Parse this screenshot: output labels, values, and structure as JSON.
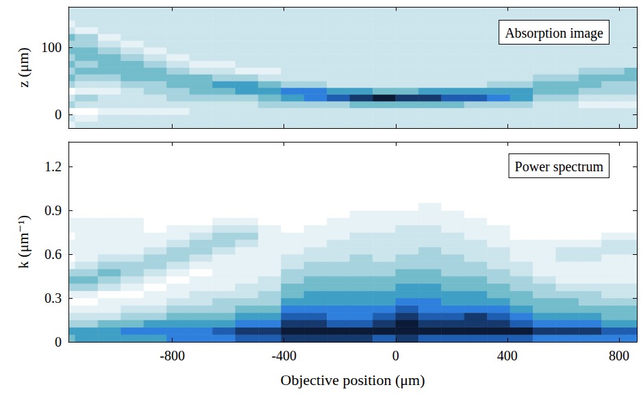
{
  "chart_data": [
    {
      "type": "heatmap",
      "annotation": "Absorption image",
      "ylabel": "z (μm)",
      "x": [
        -1189,
        -1107,
        -1025,
        -943,
        -861,
        -779,
        -697,
        -615,
        -533,
        -451,
        -369,
        -287,
        -205,
        -123,
        -41,
        41,
        123,
        205,
        287,
        369,
        451,
        533,
        615,
        697,
        779,
        861
      ],
      "y": [
        -15,
        -5,
        5,
        15,
        25,
        35,
        45,
        55,
        65,
        75,
        85,
        95,
        105,
        115,
        125,
        135,
        145,
        155
      ],
      "cell_width": 82,
      "cell_height": 10,
      "values": [
        [
          1,
          2,
          0,
          3,
          2,
          0,
          3,
          4,
          3,
          4,
          3,
          4,
          3,
          4,
          2,
          1,
          2,
          2
        ],
        [
          2,
          1,
          0,
          2,
          3,
          1,
          2,
          3,
          4,
          3,
          4,
          4,
          3,
          3,
          1,
          2,
          2,
          2
        ],
        [
          2,
          2,
          1,
          2,
          2,
          1,
          2,
          3,
          4,
          4,
          4,
          3,
          2,
          1,
          2,
          2,
          2,
          2
        ],
        [
          2,
          2,
          1,
          2,
          2,
          2,
          3,
          4,
          4,
          4,
          3,
          2,
          1,
          2,
          2,
          2,
          2,
          2
        ],
        [
          2,
          2,
          1,
          2,
          2,
          3,
          3,
          4,
          4,
          3,
          2,
          1,
          2,
          2,
          2,
          2,
          2,
          2
        ],
        [
          2,
          2,
          1,
          2,
          3,
          3,
          4,
          4,
          3,
          2,
          1,
          2,
          2,
          2,
          2,
          2,
          2,
          2
        ],
        [
          2,
          2,
          2,
          2,
          3,
          4,
          4,
          4,
          2,
          1,
          2,
          2,
          2,
          2,
          2,
          2,
          2,
          2
        ],
        [
          2,
          2,
          2,
          2,
          3,
          4,
          5,
          3,
          2,
          1,
          2,
          2,
          2,
          2,
          2,
          2,
          2,
          2
        ],
        [
          2,
          2,
          2,
          2,
          3,
          5,
          5,
          3,
          1,
          2,
          2,
          2,
          2,
          2,
          2,
          2,
          2,
          2
        ],
        [
          2,
          2,
          2,
          3,
          4,
          5,
          4,
          2,
          1,
          2,
          2,
          2,
          2,
          2,
          2,
          2,
          2,
          2
        ],
        [
          2,
          2,
          2,
          3,
          5,
          6,
          3,
          2,
          2,
          2,
          2,
          2,
          2,
          2,
          2,
          2,
          2,
          2
        ],
        [
          2,
          2,
          2,
          3,
          6,
          6,
          3,
          2,
          2,
          2,
          2,
          2,
          2,
          2,
          2,
          2,
          2,
          2
        ],
        [
          2,
          2,
          2,
          3,
          7,
          5,
          2,
          2,
          2,
          2,
          2,
          2,
          2,
          2,
          2,
          2,
          2,
          2
        ],
        [
          2,
          2,
          2,
          4,
          8,
          5,
          2,
          2,
          2,
          2,
          2,
          2,
          2,
          2,
          2,
          2,
          2,
          2
        ],
        [
          2,
          2,
          2,
          4,
          9,
          4,
          2,
          2,
          2,
          2,
          2,
          2,
          2,
          2,
          2,
          2,
          2,
          2
        ],
        [
          2,
          2,
          2,
          4,
          8,
          4,
          2,
          2,
          2,
          2,
          2,
          2,
          2,
          2,
          2,
          2,
          2,
          2
        ],
        [
          2,
          2,
          2,
          4,
          8,
          5,
          2,
          2,
          2,
          2,
          2,
          2,
          2,
          2,
          2,
          2,
          2,
          2
        ],
        [
          2,
          2,
          2,
          4,
          7,
          5,
          2,
          2,
          2,
          2,
          2,
          2,
          2,
          2,
          2,
          2,
          2,
          2
        ],
        [
          2,
          2,
          2,
          3,
          7,
          5,
          2,
          2,
          2,
          2,
          2,
          2,
          2,
          2,
          2,
          2,
          2,
          2
        ],
        [
          2,
          2,
          2,
          3,
          6,
          5,
          3,
          2,
          2,
          2,
          2,
          2,
          2,
          2,
          2,
          2,
          2,
          2
        ],
        [
          2,
          2,
          2,
          3,
          5,
          5,
          3,
          2,
          2,
          2,
          2,
          2,
          2,
          2,
          2,
          2,
          2,
          2
        ],
        [
          2,
          2,
          2,
          2,
          3,
          4,
          4,
          3,
          2,
          2,
          2,
          2,
          2,
          2,
          2,
          2,
          2,
          2
        ],
        [
          2,
          2,
          2,
          2,
          3,
          4,
          4,
          3,
          2,
          2,
          2,
          2,
          2,
          2,
          2,
          2,
          2,
          2
        ],
        [
          2,
          2,
          2,
          1,
          2,
          3,
          4,
          4,
          3,
          2,
          2,
          2,
          2,
          2,
          2,
          2,
          2,
          2
        ],
        [
          2,
          2,
          2,
          1,
          2,
          3,
          3,
          4,
          3,
          2,
          2,
          2,
          2,
          2,
          2,
          2,
          2,
          2
        ],
        [
          2,
          2,
          2,
          1,
          2,
          3,
          3,
          4,
          4,
          2,
          2,
          2,
          2,
          2,
          2,
          2,
          2,
          2
        ]
      ],
      "zlim": [
        0,
        9
      ],
      "xlim": [
        -1172,
        864
      ],
      "ylim": [
        -20,
        160
      ],
      "xticks": [
        -800,
        -400,
        0,
        400,
        800
      ],
      "yticks": [
        0,
        100
      ],
      "tick_labels": "y",
      "grid": false
    },
    {
      "type": "heatmap",
      "annotation": "Power spectrum",
      "xlabel": "Objective position (μm)",
      "ylabel": "k (μm⁻¹)",
      "x": [
        -1189,
        -1107,
        -1025,
        -943,
        -861,
        -779,
        -697,
        -615,
        -533,
        -451,
        -369,
        -287,
        -205,
        -123,
        -41,
        41,
        123,
        205,
        287,
        369,
        451,
        533,
        615,
        697,
        779,
        861
      ],
      "y": [
        0.025,
        0.075,
        0.125,
        0.175,
        0.225,
        0.275,
        0.325,
        0.375,
        0.425,
        0.475,
        0.525,
        0.575,
        0.625,
        0.675,
        0.725,
        0.775,
        0.825,
        0.875,
        0.925
      ],
      "cell_width": 82,
      "cell_height": 0.05,
      "values": [
        [
          4,
          5,
          3,
          2,
          1,
          0,
          1,
          3,
          4,
          3,
          1,
          0,
          1,
          1,
          0,
          1,
          1,
          0,
          0
        ],
        [
          5,
          5,
          3,
          2,
          1,
          0,
          1,
          3,
          4,
          3,
          2,
          1,
          1,
          1,
          1,
          1,
          1,
          0,
          0
        ],
        [
          5,
          5,
          4,
          2,
          1,
          1,
          0,
          2,
          3,
          4,
          3,
          2,
          1,
          1,
          1,
          1,
          1,
          0,
          0
        ],
        [
          5,
          6,
          4,
          3,
          2,
          1,
          0,
          1,
          2,
          3,
          3,
          2,
          1,
          1,
          1,
          1,
          1,
          0,
          0
        ],
        [
          5,
          6,
          5,
          3,
          2,
          1,
          1,
          0,
          1,
          2,
          3,
          3,
          2,
          1,
          1,
          0,
          0,
          0,
          0
        ],
        [
          6,
          6,
          5,
          4,
          3,
          2,
          1,
          1,
          0,
          1,
          2,
          3,
          3,
          2,
          1,
          1,
          0,
          0,
          0
        ],
        [
          6,
          6,
          5,
          4,
          3,
          2,
          2,
          1,
          1,
          0,
          1,
          2,
          3,
          3,
          2,
          1,
          0,
          0,
          0
        ],
        [
          6,
          7,
          5,
          4,
          3,
          3,
          2,
          1,
          1,
          1,
          1,
          1,
          2,
          3,
          3,
          2,
          1,
          0,
          0
        ],
        [
          7,
          8,
          6,
          5,
          4,
          3,
          2,
          2,
          1,
          1,
          1,
          1,
          1,
          2,
          3,
          2,
          1,
          0,
          0
        ],
        [
          7,
          8,
          6,
          5,
          4,
          3,
          3,
          2,
          2,
          1,
          1,
          1,
          1,
          1,
          1,
          1,
          0,
          0,
          0
        ],
        [
          8,
          9,
          8,
          7,
          6,
          5,
          4,
          4,
          3,
          3,
          2,
          2,
          1,
          1,
          1,
          0,
          0,
          0,
          0
        ],
        [
          8,
          9,
          8,
          7,
          6,
          5,
          5,
          4,
          4,
          3,
          3,
          2,
          2,
          1,
          1,
          1,
          0,
          0,
          0
        ],
        [
          8,
          9,
          7,
          6,
          6,
          5,
          5,
          4,
          4,
          3,
          3,
          2,
          2,
          2,
          1,
          1,
          1,
          0,
          0
        ],
        [
          8,
          9,
          7,
          6,
          6,
          5,
          5,
          4,
          4,
          3,
          3,
          3,
          2,
          2,
          2,
          1,
          1,
          1,
          0
        ],
        [
          7,
          9,
          8,
          7,
          6,
          5,
          5,
          4,
          4,
          3,
          3,
          2,
          2,
          2,
          2,
          1,
          1,
          1,
          0
        ],
        [
          8,
          9,
          9,
          8,
          7,
          6,
          5,
          5,
          4,
          4,
          3,
          3,
          2,
          2,
          2,
          2,
          1,
          1,
          0
        ],
        [
          7,
          9,
          8,
          7,
          6,
          6,
          5,
          5,
          4,
          4,
          3,
          3,
          3,
          2,
          2,
          2,
          1,
          1,
          1
        ],
        [
          7,
          9,
          8,
          7,
          6,
          5,
          5,
          4,
          4,
          3,
          3,
          3,
          2,
          2,
          2,
          1,
          1,
          1,
          0
        ],
        [
          7,
          9,
          8,
          8,
          6,
          5,
          5,
          4,
          4,
          3,
          3,
          2,
          2,
          2,
          1,
          1,
          1,
          0,
          0
        ],
        [
          7,
          9,
          8,
          7,
          6,
          5,
          4,
          4,
          3,
          3,
          2,
          2,
          2,
          1,
          1,
          1,
          0,
          0,
          0
        ],
        [
          7,
          9,
          7,
          6,
          5,
          4,
          4,
          3,
          3,
          2,
          2,
          1,
          1,
          1,
          0,
          0,
          0,
          0,
          0
        ],
        [
          6,
          8,
          6,
          5,
          4,
          4,
          3,
          3,
          2,
          1,
          1,
          1,
          1,
          1,
          0,
          0,
          0,
          0,
          0
        ],
        [
          6,
          8,
          6,
          5,
          4,
          4,
          3,
          2,
          1,
          1,
          1,
          2,
          2,
          1,
          0,
          0,
          0,
          0,
          0
        ],
        [
          6,
          8,
          6,
          5,
          4,
          3,
          3,
          2,
          1,
          1,
          1,
          2,
          2,
          1,
          0,
          0,
          0,
          0,
          0
        ],
        [
          6,
          7,
          5,
          4,
          4,
          3,
          2,
          2,
          1,
          1,
          1,
          1,
          2,
          2,
          1,
          0,
          0,
          0,
          0
        ],
        [
          6,
          7,
          5,
          4,
          4,
          3,
          2,
          2,
          1,
          1,
          1,
          1,
          2,
          2,
          1,
          0,
          0,
          0,
          0
        ]
      ],
      "zlim": [
        0,
        9
      ],
      "xlim": [
        -1172,
        864
      ],
      "ylim": [
        0,
        1.37
      ],
      "xticks": [
        -800,
        -400,
        0,
        400,
        800
      ],
      "yticks": [
        0,
        0.3,
        0.6,
        0.9,
        1.2
      ],
      "grid": false
    }
  ]
}
